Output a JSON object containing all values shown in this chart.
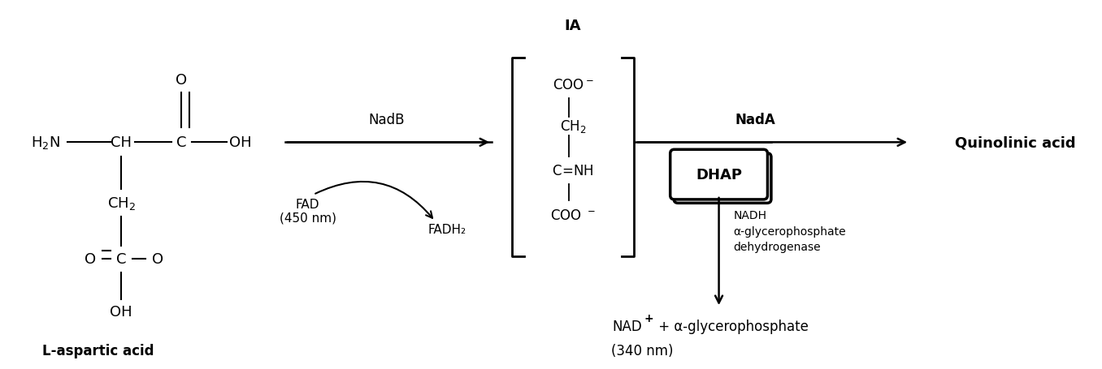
{
  "bg_color": "#ffffff",
  "fig_width": 13.56,
  "fig_height": 4.56,
  "title": "",
  "l_aspartic_label": "L-aspartic acid",
  "IA_label": "IA",
  "nadb_label": "NadB",
  "fad_label": "FAD\n(450 nm)",
  "fadh2_label": "FADH₂",
  "nada_label": "NadA",
  "dhap_label": "DHAP",
  "nadh_enzyme_label": "NADH\nα-glycerophosphate\ndehydrogenase",
  "nadplus_label": "NAD",
  "nadplus_plus": "+",
  "glycerophosphate_label": " + α-glycerophosphate",
  "nm340_label": "(340 nm)",
  "quinolinic_label": "Quinolinic acid",
  "coo_minus_top": "COO⁻",
  "ch2_ia": "CH₂",
  "c_nh": "C═NH",
  "coo_minus_bot": "COO ⁻"
}
